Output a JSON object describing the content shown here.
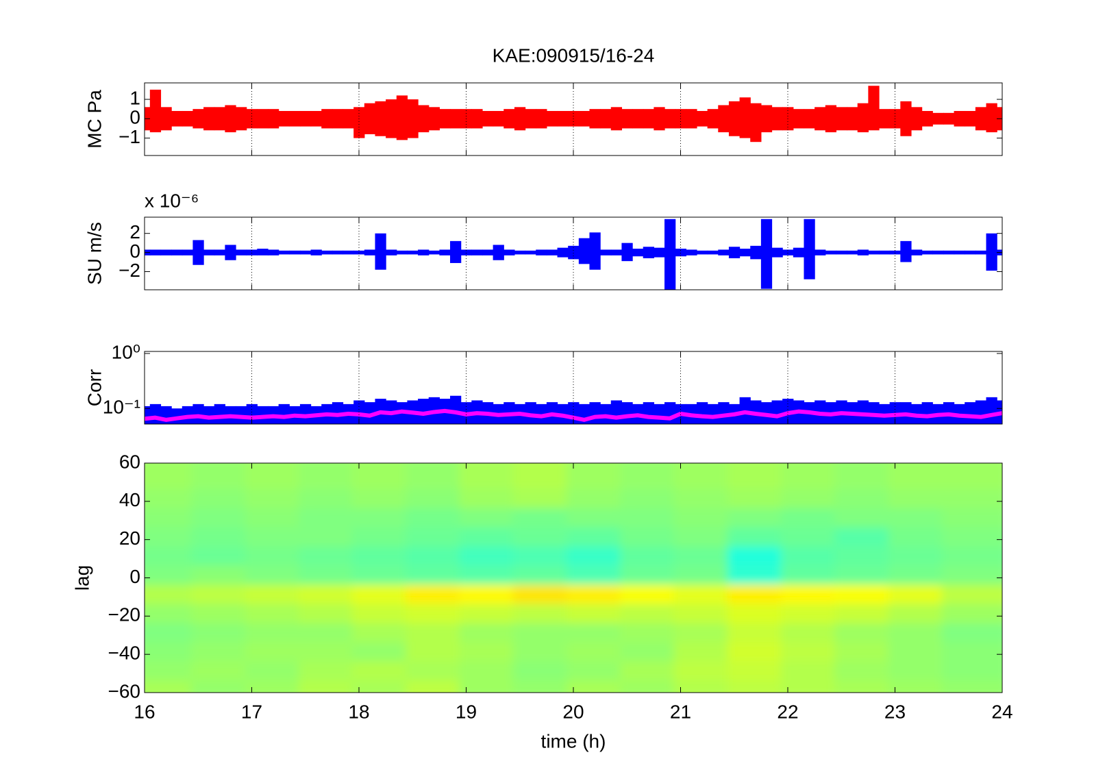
{
  "chart_data": [
    {
      "type": "envelope",
      "title": "KAE:090915/16-24",
      "ylabel": "MC Pa",
      "color": "#ff0000",
      "xgrid": true,
      "xlim": [
        16,
        24
      ],
      "xticks": [
        16,
        17,
        18,
        19,
        20,
        21,
        22,
        23,
        24
      ],
      "ylim": [
        -1.9,
        1.85
      ],
      "yticks": [
        {
          "value": -1,
          "label": "−1"
        },
        0,
        1
      ],
      "x": [
        16,
        16.1,
        16.2,
        16.3,
        16.4,
        16.5,
        16.6,
        16.7,
        16.8,
        16.9,
        17,
        17.1,
        17.2,
        17.3,
        17.4,
        17.5,
        17.6,
        17.7,
        17.8,
        17.9,
        18,
        18.1,
        18.2,
        18.3,
        18.4,
        18.5,
        18.6,
        18.7,
        18.8,
        18.9,
        19,
        19.1,
        19.2,
        19.3,
        19.4,
        19.5,
        19.6,
        19.7,
        19.8,
        19.9,
        20,
        20.1,
        20.2,
        20.3,
        20.4,
        20.5,
        20.6,
        20.7,
        20.8,
        20.9,
        21,
        21.1,
        21.2,
        21.3,
        21.4,
        21.5,
        21.6,
        21.7,
        21.8,
        21.9,
        22,
        22.1,
        22.2,
        22.3,
        22.4,
        22.5,
        22.6,
        22.7,
        22.8,
        22.9,
        23,
        23.1,
        23.2,
        23.3,
        23.4,
        23.5,
        23.6,
        23.7,
        23.8,
        23.9,
        24
      ],
      "upper": [
        0.6,
        1.5,
        0.6,
        0.4,
        0.4,
        0.5,
        0.6,
        0.6,
        0.7,
        0.6,
        0.5,
        0.5,
        0.5,
        0.4,
        0.4,
        0.4,
        0.4,
        0.5,
        0.5,
        0.5,
        0.6,
        0.8,
        0.9,
        1.0,
        1.2,
        1.0,
        0.7,
        0.6,
        0.5,
        0.5,
        0.5,
        0.5,
        0.4,
        0.4,
        0.5,
        0.6,
        0.5,
        0.5,
        0.4,
        0.4,
        0.4,
        0.4,
        0.5,
        0.5,
        0.6,
        0.5,
        0.5,
        0.5,
        0.6,
        0.5,
        0.5,
        0.5,
        0.4,
        0.5,
        0.7,
        0.9,
        1.1,
        0.8,
        0.7,
        0.6,
        0.6,
        0.5,
        0.5,
        0.6,
        0.7,
        0.6,
        0.6,
        0.8,
        1.7,
        0.5,
        0.5,
        0.9,
        0.6,
        0.4,
        0.3,
        0.3,
        0.4,
        0.4,
        0.6,
        0.8,
        0.6
      ],
      "lower": [
        -0.6,
        -0.7,
        -0.6,
        -0.4,
        -0.4,
        -0.5,
        -0.6,
        -0.6,
        -0.7,
        -0.6,
        -0.5,
        -0.5,
        -0.5,
        -0.4,
        -0.4,
        -0.4,
        -0.4,
        -0.5,
        -0.5,
        -0.5,
        -1.0,
        -0.8,
        -0.9,
        -1.0,
        -1.1,
        -1.0,
        -0.7,
        -0.6,
        -0.5,
        -0.5,
        -0.5,
        -0.5,
        -0.4,
        -0.4,
        -0.5,
        -0.6,
        -0.5,
        -0.5,
        -0.4,
        -0.4,
        -0.4,
        -0.4,
        -0.5,
        -0.5,
        -0.6,
        -0.5,
        -0.5,
        -0.5,
        -0.6,
        -0.5,
        -0.5,
        -0.5,
        -0.4,
        -0.5,
        -0.7,
        -0.9,
        -1.0,
        -1.2,
        -0.7,
        -0.6,
        -0.6,
        -0.5,
        -0.5,
        -0.6,
        -0.7,
        -0.6,
        -0.6,
        -0.7,
        -0.6,
        -0.5,
        -0.5,
        -0.9,
        -0.6,
        -0.4,
        -0.3,
        -0.3,
        -0.4,
        -0.4,
        -0.6,
        -0.7,
        -0.6
      ]
    },
    {
      "type": "envelope",
      "ylabel": "SU m/s",
      "exponent_label": "x 10⁻⁶",
      "color": "#0000ff",
      "xgrid": true,
      "xlim": [
        16,
        24
      ],
      "xticks": [
        16,
        17,
        18,
        19,
        20,
        21,
        22,
        23,
        24
      ],
      "ylim": [
        -3.9,
        3.7
      ],
      "yticks": [
        {
          "value": -2,
          "label": "−2"
        },
        0,
        2
      ],
      "x": [
        16,
        16.1,
        16.2,
        16.3,
        16.4,
        16.5,
        16.6,
        16.7,
        16.8,
        16.9,
        17,
        17.1,
        17.2,
        17.3,
        17.4,
        17.5,
        17.6,
        17.7,
        17.8,
        17.9,
        18,
        18.1,
        18.2,
        18.3,
        18.4,
        18.5,
        18.6,
        18.7,
        18.8,
        18.9,
        19,
        19.1,
        19.2,
        19.3,
        19.4,
        19.5,
        19.6,
        19.7,
        19.8,
        19.9,
        20,
        20.1,
        20.2,
        20.3,
        20.4,
        20.5,
        20.6,
        20.7,
        20.8,
        20.9,
        21,
        21.1,
        21.2,
        21.3,
        21.4,
        21.5,
        21.6,
        21.7,
        21.8,
        21.9,
        22,
        22.1,
        22.2,
        22.3,
        22.4,
        22.5,
        22.6,
        22.7,
        22.8,
        22.9,
        23,
        23.1,
        23.2,
        23.3,
        23.4,
        23.5,
        23.6,
        23.7,
        23.8,
        23.9,
        24
      ],
      "upper": [
        0.3,
        0.3,
        0.3,
        0.3,
        0.3,
        1.3,
        0.3,
        0.3,
        0.8,
        0.3,
        0.3,
        0.4,
        0.3,
        0.2,
        0.2,
        0.2,
        0.3,
        0.2,
        0.2,
        0.2,
        0.2,
        0.3,
        2.0,
        0.3,
        0.2,
        0.2,
        0.3,
        0.2,
        0.3,
        1.2,
        0.3,
        0.3,
        0.3,
        0.8,
        0.3,
        0.2,
        0.2,
        0.3,
        0.3,
        0.5,
        0.7,
        1.5,
        2.1,
        0.3,
        0.3,
        1.0,
        0.4,
        0.6,
        0.5,
        3.5,
        0.4,
        0.3,
        0.2,
        0.2,
        0.3,
        0.6,
        0.4,
        0.7,
        3.5,
        0.5,
        0.3,
        0.5,
        3.5,
        0.3,
        0.2,
        0.2,
        0.2,
        0.3,
        0.2,
        0.2,
        0.2,
        1.2,
        0.3,
        0.2,
        0.2,
        0.2,
        0.2,
        0.2,
        0.2,
        2.0,
        0.3
      ],
      "lower": [
        -0.3,
        -0.3,
        -0.3,
        -0.3,
        -0.3,
        -1.3,
        -0.3,
        -0.3,
        -0.8,
        -0.3,
        -0.3,
        -0.3,
        -0.3,
        -0.2,
        -0.2,
        -0.2,
        -0.3,
        -0.2,
        -0.2,
        -0.2,
        -0.2,
        -0.3,
        -1.8,
        -0.3,
        -0.2,
        -0.2,
        -0.3,
        -0.2,
        -0.3,
        -1.1,
        -0.3,
        -0.3,
        -0.3,
        -0.8,
        -0.3,
        -0.2,
        -0.2,
        -0.3,
        -0.3,
        -0.5,
        -0.7,
        -1.2,
        -1.8,
        -0.3,
        -0.3,
        -0.9,
        -0.4,
        -0.6,
        -0.5,
        -3.9,
        -0.4,
        -0.3,
        -0.2,
        -0.2,
        -0.3,
        -0.6,
        -0.4,
        -0.7,
        -3.8,
        -0.5,
        -0.3,
        -0.5,
        -2.8,
        -0.3,
        -0.2,
        -0.2,
        -0.2,
        -0.3,
        -0.2,
        -0.2,
        -0.2,
        -1.0,
        -0.3,
        -0.2,
        -0.2,
        -0.2,
        -0.2,
        -0.2,
        -0.2,
        -1.9,
        -0.3
      ]
    },
    {
      "type": "line",
      "ylabel": "Corr",
      "ylog": true,
      "xgrid": true,
      "xlim": [
        16,
        24
      ],
      "xticks": [
        16,
        17,
        18,
        19,
        20,
        21,
        22,
        23,
        24
      ],
      "ylim": [
        0.052,
        1.09
      ],
      "yticks": [
        {
          "value": 0.1,
          "label": "10⁻¹"
        },
        {
          "value": 1,
          "label": "10⁰"
        }
      ],
      "x": [
        16,
        16.1,
        16.2,
        16.3,
        16.4,
        16.5,
        16.6,
        16.7,
        16.8,
        16.9,
        17,
        17.1,
        17.2,
        17.3,
        17.4,
        17.5,
        17.6,
        17.7,
        17.8,
        17.9,
        18,
        18.1,
        18.2,
        18.3,
        18.4,
        18.5,
        18.6,
        18.7,
        18.8,
        18.9,
        19,
        19.1,
        19.2,
        19.3,
        19.4,
        19.5,
        19.6,
        19.7,
        19.8,
        19.9,
        20,
        20.1,
        20.2,
        20.3,
        20.4,
        20.5,
        20.6,
        20.7,
        20.8,
        20.9,
        21,
        21.1,
        21.2,
        21.3,
        21.4,
        21.5,
        21.6,
        21.7,
        21.8,
        21.9,
        22,
        22.1,
        22.2,
        22.3,
        22.4,
        22.5,
        22.6,
        22.7,
        22.8,
        22.9,
        23,
        23.1,
        23.2,
        23.3,
        23.4,
        23.5,
        23.6,
        23.7,
        23.8,
        23.9,
        24
      ],
      "series": [
        {
          "color": "#0000ff",
          "area": true,
          "values": [
            0.11,
            0.12,
            0.11,
            0.1,
            0.11,
            0.12,
            0.11,
            0.12,
            0.11,
            0.11,
            0.12,
            0.11,
            0.11,
            0.12,
            0.11,
            0.12,
            0.11,
            0.12,
            0.13,
            0.12,
            0.14,
            0.13,
            0.15,
            0.14,
            0.13,
            0.14,
            0.15,
            0.16,
            0.15,
            0.17,
            0.13,
            0.14,
            0.13,
            0.12,
            0.13,
            0.12,
            0.13,
            0.12,
            0.13,
            0.12,
            0.13,
            0.12,
            0.13,
            0.12,
            0.14,
            0.13,
            0.12,
            0.13,
            0.12,
            0.13,
            0.12,
            0.12,
            0.13,
            0.12,
            0.13,
            0.12,
            0.16,
            0.14,
            0.13,
            0.14,
            0.15,
            0.14,
            0.13,
            0.14,
            0.13,
            0.14,
            0.13,
            0.14,
            0.13,
            0.12,
            0.13,
            0.13,
            0.12,
            0.13,
            0.12,
            0.13,
            0.12,
            0.13,
            0.14,
            0.16,
            0.14
          ]
        },
        {
          "color": "#ff00ff",
          "values": [
            0.065,
            0.068,
            0.062,
            0.066,
            0.07,
            0.072,
            0.068,
            0.07,
            0.072,
            0.07,
            0.068,
            0.07,
            0.072,
            0.07,
            0.074,
            0.072,
            0.075,
            0.078,
            0.076,
            0.08,
            0.078,
            0.074,
            0.085,
            0.082,
            0.088,
            0.084,
            0.08,
            0.086,
            0.09,
            0.085,
            0.078,
            0.082,
            0.08,
            0.076,
            0.078,
            0.08,
            0.075,
            0.072,
            0.078,
            0.074,
            0.068,
            0.062,
            0.07,
            0.072,
            0.068,
            0.072,
            0.075,
            0.07,
            0.068,
            0.066,
            0.08,
            0.075,
            0.072,
            0.07,
            0.074,
            0.078,
            0.085,
            0.08,
            0.076,
            0.072,
            0.082,
            0.088,
            0.085,
            0.08,
            0.078,
            0.082,
            0.08,
            0.078,
            0.076,
            0.074,
            0.076,
            0.078,
            0.074,
            0.072,
            0.076,
            0.078,
            0.074,
            0.072,
            0.07,
            0.076,
            0.082
          ]
        }
      ]
    },
    {
      "type": "heatmap",
      "ylabel": "lag",
      "xlabel": "time (h)",
      "colormap": "jet",
      "clim": [
        0,
        1
      ],
      "show_xticklabels": true,
      "xlim": [
        16,
        24
      ],
      "xticks": [
        16,
        17,
        18,
        19,
        20,
        21,
        22,
        23,
        24
      ],
      "ylim": [
        -60,
        60
      ],
      "yticks": [
        {
          "value": -60,
          "label": "−60"
        },
        {
          "value": -40,
          "label": "−40"
        },
        {
          "value": -20,
          "label": "−20"
        },
        0,
        20,
        40,
        60
      ],
      "x_edges": [
        16,
        16.5,
        17,
        17.5,
        18,
        18.5,
        19,
        19.5,
        20,
        20.5,
        21,
        21.5,
        22,
        22.5,
        23,
        23.5,
        24
      ],
      "y_edges": [
        -60,
        -50,
        -40,
        -30,
        -20,
        -10,
        0,
        10,
        20,
        30,
        40,
        50,
        60
      ],
      "z": [
        [
          0.54,
          0.52,
          0.53,
          0.55,
          0.54,
          0.56,
          0.53,
          0.52,
          0.54,
          0.53,
          0.55,
          0.56,
          0.55,
          0.54,
          0.53,
          0.52
        ],
        [
          0.52,
          0.53,
          0.52,
          0.54,
          0.55,
          0.54,
          0.53,
          0.51,
          0.52,
          0.54,
          0.56,
          0.57,
          0.55,
          0.53,
          0.52,
          0.51
        ],
        [
          0.51,
          0.52,
          0.53,
          0.53,
          0.52,
          0.55,
          0.54,
          0.52,
          0.53,
          0.52,
          0.55,
          0.58,
          0.56,
          0.54,
          0.52,
          0.51
        ],
        [
          0.5,
          0.51,
          0.52,
          0.52,
          0.54,
          0.55,
          0.53,
          0.52,
          0.52,
          0.53,
          0.54,
          0.57,
          0.55,
          0.53,
          0.52,
          0.5
        ],
        [
          0.52,
          0.53,
          0.54,
          0.55,
          0.57,
          0.58,
          0.57,
          0.56,
          0.57,
          0.56,
          0.57,
          0.59,
          0.58,
          0.57,
          0.55,
          0.53
        ],
        [
          0.55,
          0.56,
          0.57,
          0.58,
          0.6,
          0.64,
          0.63,
          0.65,
          0.64,
          0.62,
          0.6,
          0.64,
          0.63,
          0.62,
          0.6,
          0.56
        ],
        [
          0.5,
          0.51,
          0.5,
          0.49,
          0.48,
          0.47,
          0.46,
          0.47,
          0.45,
          0.48,
          0.49,
          0.42,
          0.47,
          0.48,
          0.49,
          0.5
        ],
        [
          0.49,
          0.48,
          0.49,
          0.48,
          0.47,
          0.46,
          0.44,
          0.45,
          0.43,
          0.47,
          0.48,
          0.41,
          0.46,
          0.47,
          0.48,
          0.49
        ],
        [
          0.5,
          0.49,
          0.5,
          0.5,
          0.49,
          0.48,
          0.47,
          0.48,
          0.47,
          0.49,
          0.5,
          0.47,
          0.48,
          0.46,
          0.49,
          0.5
        ],
        [
          0.51,
          0.5,
          0.51,
          0.5,
          0.5,
          0.49,
          0.5,
          0.49,
          0.5,
          0.5,
          0.51,
          0.5,
          0.49,
          0.5,
          0.5,
          0.51
        ],
        [
          0.52,
          0.51,
          0.52,
          0.51,
          0.52,
          0.51,
          0.53,
          0.54,
          0.52,
          0.51,
          0.52,
          0.53,
          0.52,
          0.51,
          0.52,
          0.52
        ],
        [
          0.53,
          0.52,
          0.53,
          0.52,
          0.53,
          0.52,
          0.54,
          0.55,
          0.53,
          0.52,
          0.53,
          0.54,
          0.53,
          0.52,
          0.53,
          0.53
        ]
      ]
    }
  ]
}
